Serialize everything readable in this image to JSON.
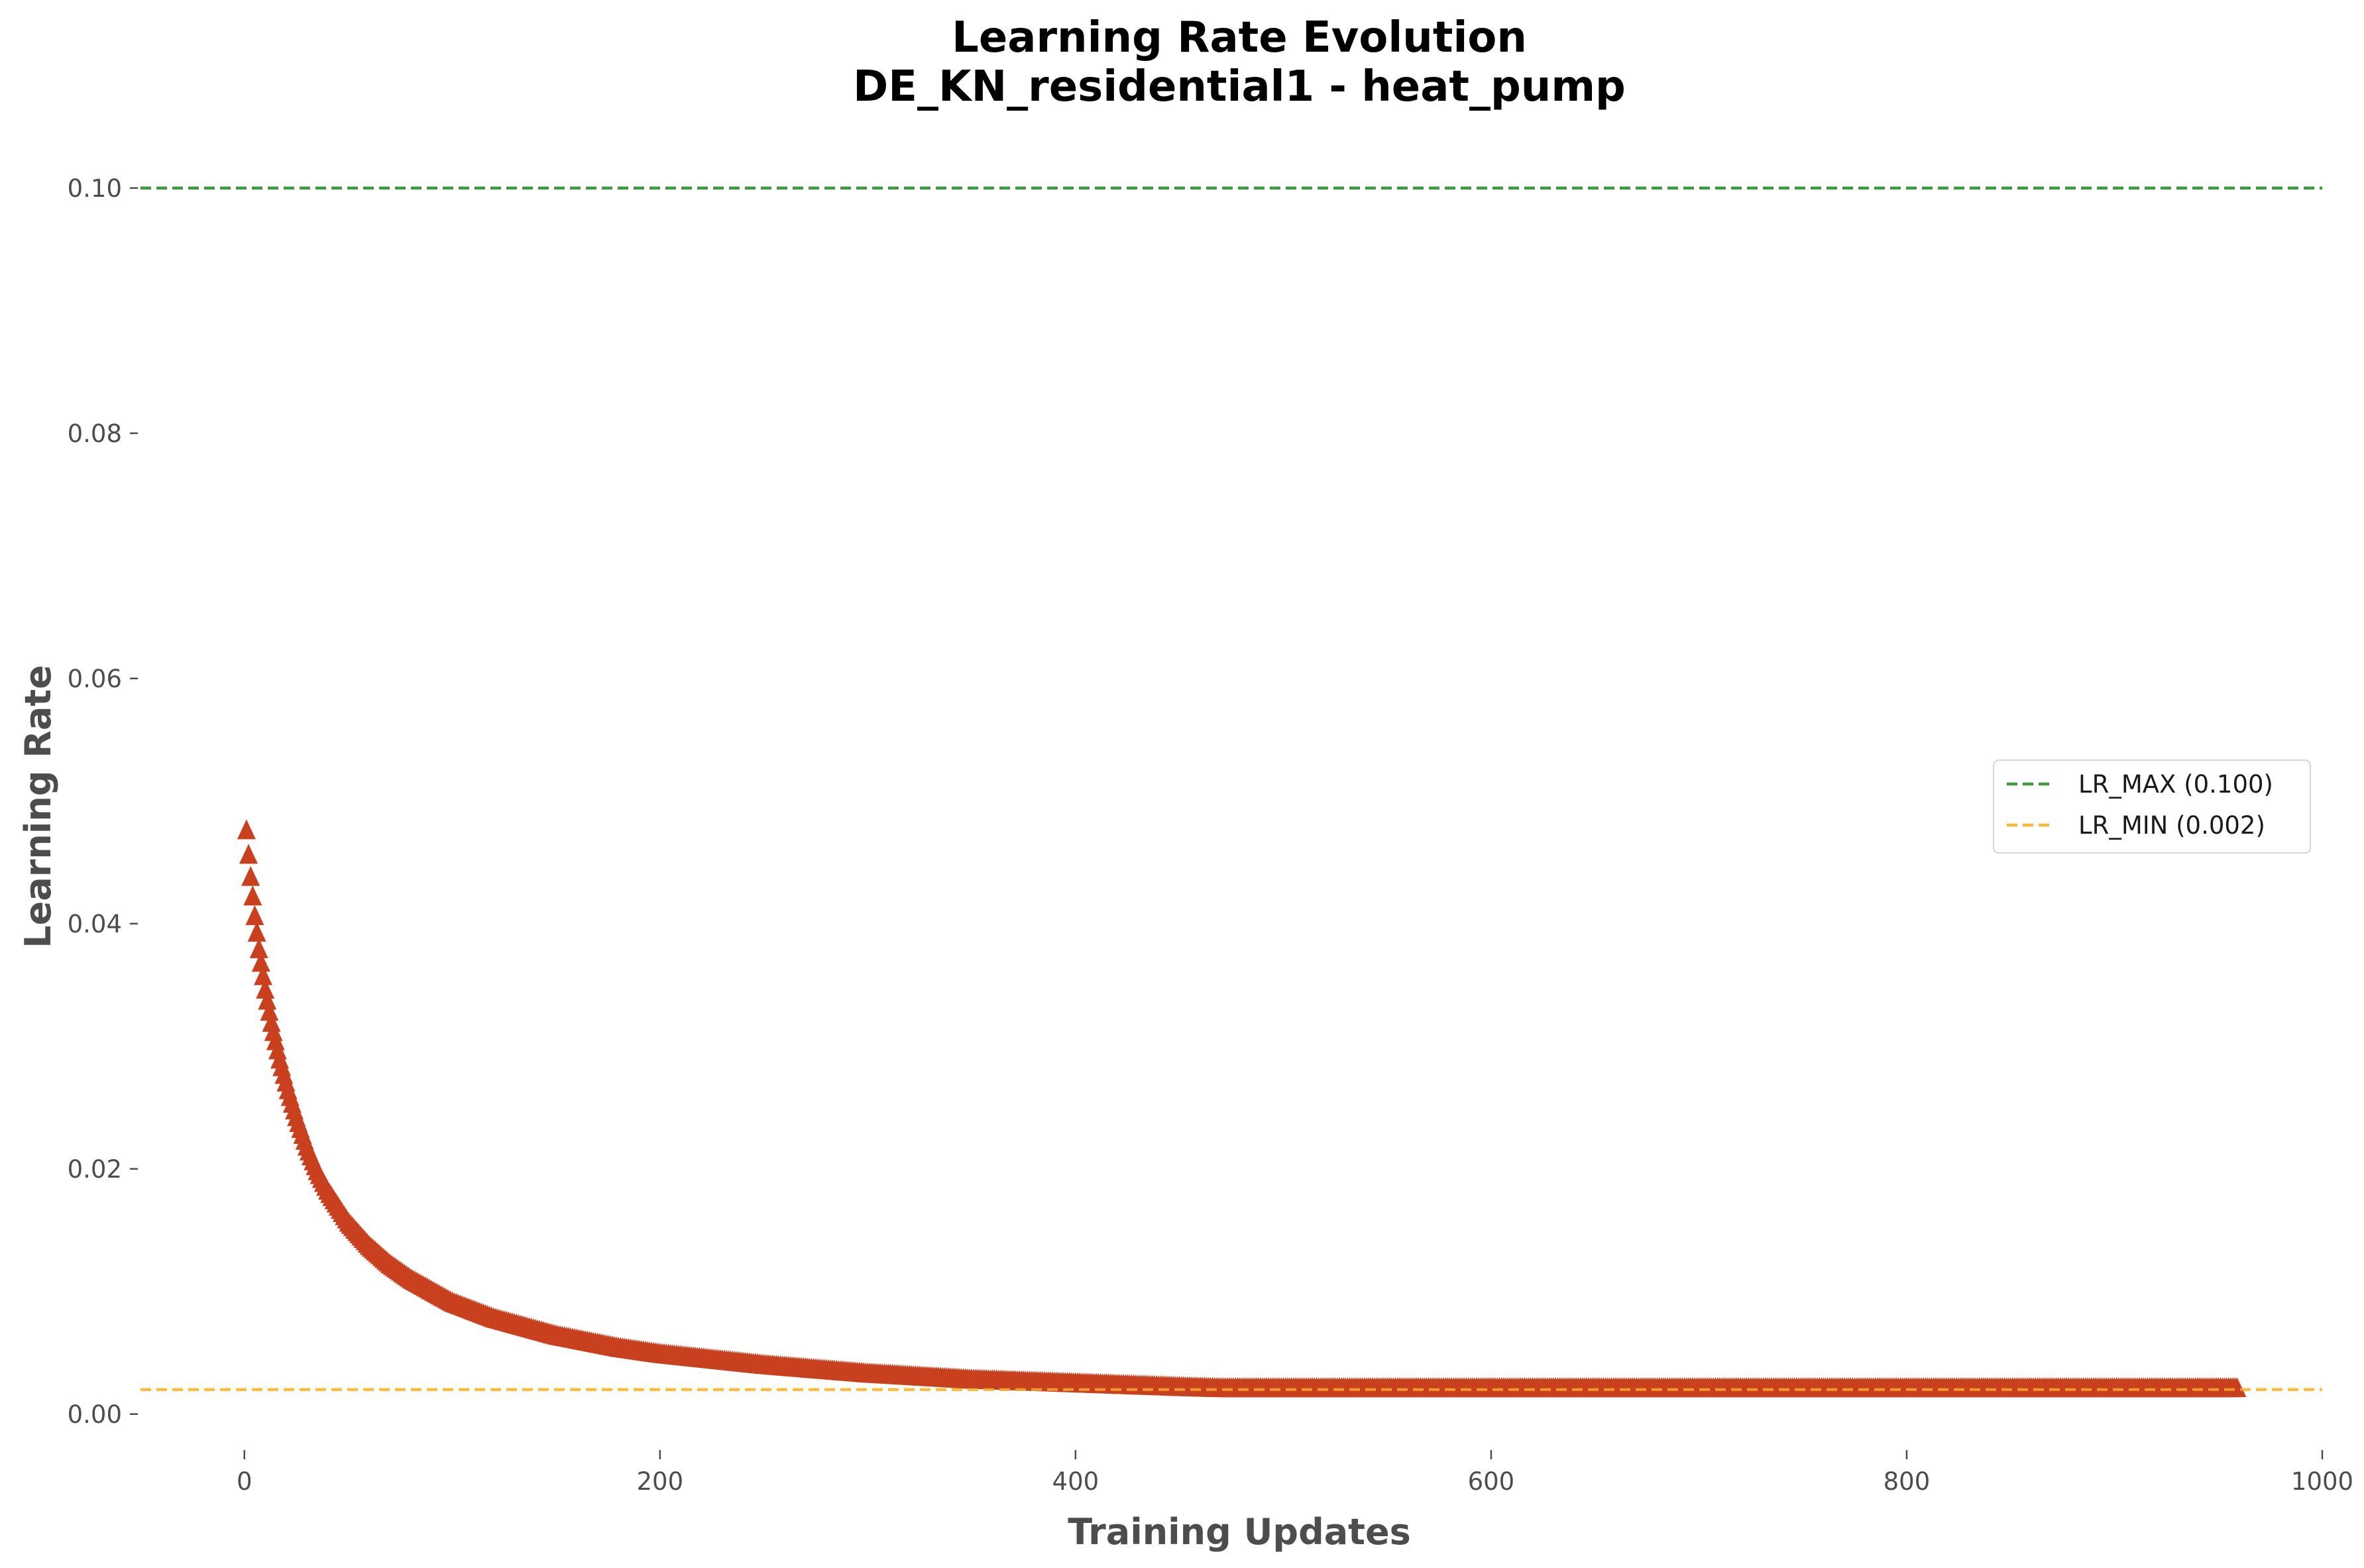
{
  "chart_data": {
    "type": "scatter",
    "title": "Learning Rate Evolution",
    "subtitle": "DE_KN_residential1 - heat_pump",
    "xlabel": "Training Updates",
    "ylabel": "Learning Rate",
    "xlim": [
      -50,
      1000
    ],
    "ylim": [
      -0.0025,
      0.1075
    ],
    "xticks": [
      0,
      200,
      400,
      600,
      800,
      1000
    ],
    "xtick_labels": [
      "0",
      "200",
      "400",
      "600",
      "800",
      "1000"
    ],
    "yticks": [
      0.0,
      0.02,
      0.04,
      0.06,
      0.08,
      0.1
    ],
    "ytick_labels": [
      "0.00",
      "0.02",
      "0.04",
      "0.06",
      "0.08",
      "0.10"
    ],
    "grid": false,
    "legend_position": "center-right",
    "marker": "triangle-up",
    "series": [
      {
        "color": "#c9401f",
        "x_start": 1,
        "x_end": 959,
        "x": [
          1,
          2,
          3,
          5,
          7,
          10,
          13,
          17,
          21,
          25,
          30,
          35,
          40,
          50,
          60,
          70,
          80,
          100,
          120,
          150,
          180,
          200,
          250,
          300,
          350,
          400,
          450,
          470,
          500,
          600,
          700,
          800,
          900,
          959
        ],
        "y": [
          0.0475,
          0.0455,
          0.0437,
          0.0405,
          0.0378,
          0.0345,
          0.0318,
          0.0288,
          0.0263,
          0.0241,
          0.0217,
          0.0197,
          0.0181,
          0.0155,
          0.0136,
          0.0121,
          0.0109,
          0.009,
          0.0077,
          0.0063,
          0.0053,
          0.0048,
          0.0039,
          0.0032,
          0.0027,
          0.0024,
          0.0021,
          0.002,
          0.002,
          0.002,
          0.002,
          0.002,
          0.002,
          0.002
        ]
      }
    ],
    "reference_lines": [
      {
        "label": "LR_MAX (0.100)",
        "y": 0.1,
        "color": "#3d9a3d"
      },
      {
        "label": "LR_MIN (0.002)",
        "y": 0.002,
        "color": "#ffb833"
      }
    ]
  }
}
